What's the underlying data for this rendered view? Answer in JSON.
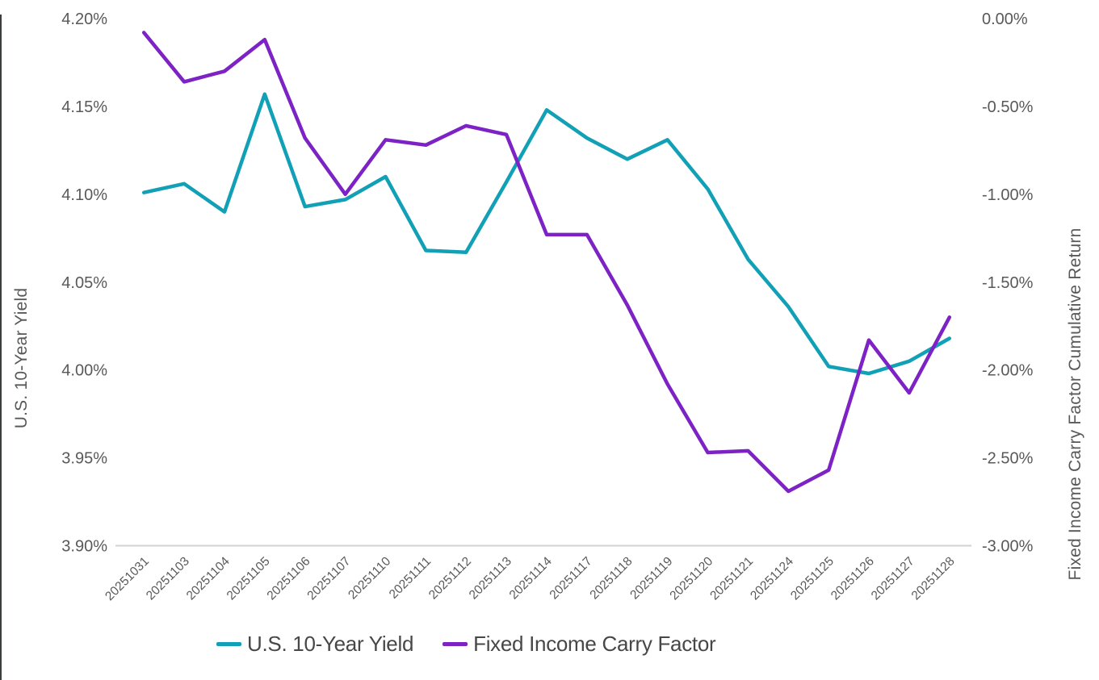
{
  "chart_data": {
    "type": "line",
    "title": "",
    "grid": "off",
    "categories": [
      "20251031",
      "20251103",
      "20251104",
      "20251105",
      "20251106",
      "20251107",
      "20251110",
      "20251111",
      "20251112",
      "20251113",
      "20251114",
      "20251117",
      "20251118",
      "20251119",
      "20251120",
      "20251121",
      "20251124",
      "20251125",
      "20251126",
      "20251127",
      "20251128"
    ],
    "series": [
      {
        "name": "U.S. 10-Year Yield",
        "axis": "left",
        "color": "#12A0B6",
        "values": [
          4.101,
          4.106,
          4.09,
          4.157,
          4.093,
          4.097,
          4.11,
          4.068,
          4.067,
          4.107,
          4.148,
          4.132,
          4.12,
          4.131,
          4.103,
          4.063,
          4.036,
          4.002,
          3.998,
          4.005,
          4.018
        ]
      },
      {
        "name": "Fixed Income Carry Factor",
        "axis": "right",
        "color": "#7D22C4",
        "values": [
          -0.08,
          -0.36,
          -0.3,
          -0.12,
          -0.68,
          -1.0,
          -0.69,
          -0.72,
          -0.61,
          -0.66,
          -1.23,
          -1.23,
          -1.63,
          -2.08,
          -2.47,
          -2.46,
          -2.69,
          -2.57,
          -1.83,
          -2.13,
          -1.7
        ]
      }
    ],
    "left_axis": {
      "title": "U.S. 10-Year Yield",
      "min": 3.9,
      "max": 4.2,
      "step": 0.05,
      "tick_labels": [
        "4.20%",
        "4.15%",
        "4.10%",
        "4.05%",
        "4.00%",
        "3.95%",
        "3.90%"
      ]
    },
    "right_axis": {
      "title": "Fixed Income Carry Factor Cumulative Return",
      "min": -3.0,
      "max": 0.0,
      "step": 0.5,
      "tick_labels": [
        "0.00%",
        "-0.50%",
        "-1.00%",
        "-1.50%",
        "-2.00%",
        "-2.50%",
        "-3.00%"
      ]
    },
    "legend": {
      "position": "bottom"
    },
    "colors": {
      "axis_text": "#595959",
      "legend_text": "#474747",
      "axis_line": "#D2D2D2"
    }
  }
}
